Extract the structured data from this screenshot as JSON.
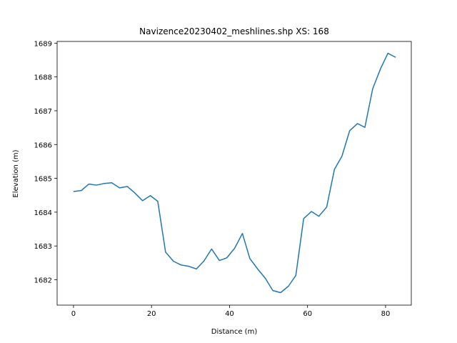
{
  "chart_data": {
    "type": "line",
    "title": "Navizence20230402_meshlines.shp XS: 168",
    "x_label": "Distance (m)",
    "y_label": "Elevation (m)",
    "x": [
      0,
      2,
      3.9,
      5.9,
      7.9,
      9.8,
      11.8,
      13.8,
      15.7,
      17.7,
      19.7,
      21.6,
      23.6,
      25.6,
      27.5,
      29.5,
      31.5,
      33.4,
      35.4,
      37.4,
      39.3,
      41.3,
      43.3,
      45.2,
      47.2,
      49.2,
      51.1,
      53.1,
      55.1,
      57,
      59,
      61,
      62.9,
      64.9,
      66.9,
      68.8,
      70.8,
      72.8,
      74.7,
      76.7,
      78.7,
      80.6,
      82.6
    ],
    "series": [
      {
        "color": "#1f77b4",
        "values": [
          1684.61,
          1684.64,
          1684.83,
          1684.8,
          1684.85,
          1684.87,
          1684.72,
          1684.76,
          1684.57,
          1684.34,
          1684.49,
          1684.32,
          1682.82,
          1682.55,
          1682.44,
          1682.4,
          1682.32,
          1682.55,
          1682.91,
          1682.57,
          1682.65,
          1682.93,
          1683.37,
          1682.63,
          1682.32,
          1682.04,
          1681.68,
          1681.62,
          1681.81,
          1682.13,
          1683.81,
          1684.02,
          1683.88,
          1684.15,
          1685.27,
          1685.65,
          1686.41,
          1686.62,
          1686.51,
          1687.65,
          1688.24,
          1688.7,
          1688.58
        ]
      }
    ],
    "xlim": [
      -4.2,
      86.6
    ],
    "xticks": [
      0,
      20,
      40,
      60,
      80
    ],
    "ylim": [
      1681.25,
      1689.05
    ],
    "yticks": [
      1682,
      1683,
      1684,
      1685,
      1686,
      1687,
      1688,
      1689
    ]
  }
}
